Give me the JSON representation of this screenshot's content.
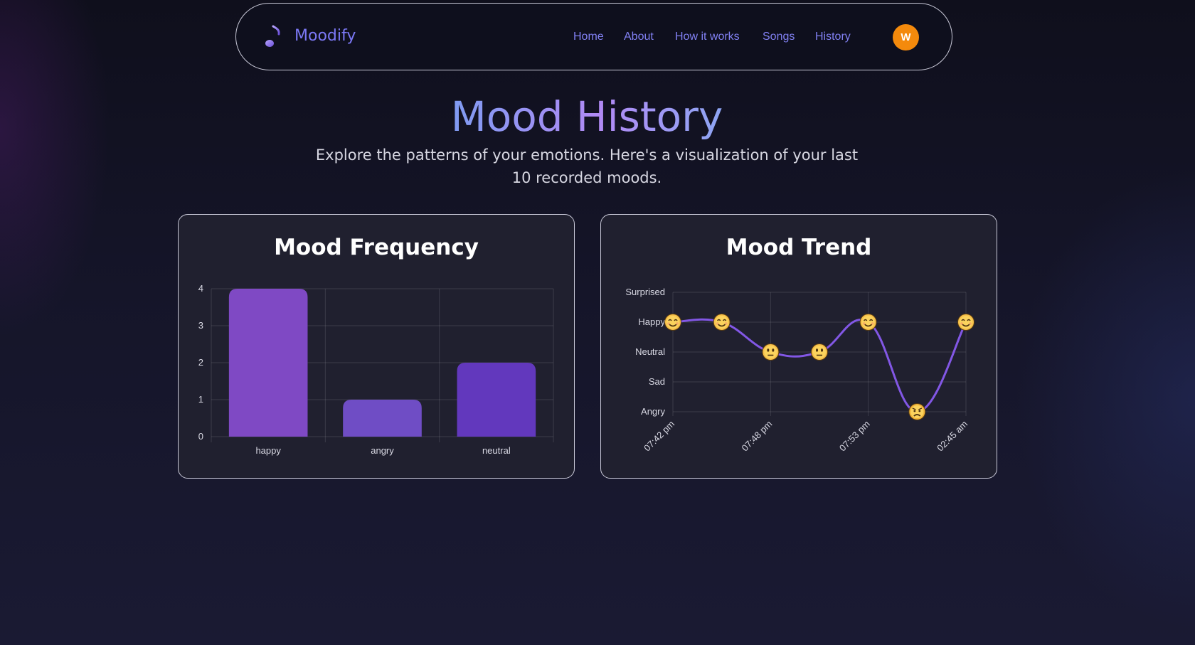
{
  "brand": {
    "name": "Moodify",
    "logo_icon": "music-note-icon"
  },
  "nav": {
    "links": [
      "Home",
      "About",
      "How it works",
      "Songs",
      "History"
    ],
    "avatar_initial": "W"
  },
  "header": {
    "title": "Mood History",
    "subtitle": "Explore the patterns of your emotions. Here's a visualization of your last 10 recorded moods."
  },
  "colors": {
    "accent": "#7b78f5",
    "avatar": "#f48a0c",
    "bar_happy": "#7f49c4",
    "bar_angry": "#6f4dc5",
    "bar_neutral": "#6238bd",
    "trend_line": "#8257e5"
  },
  "chart_data": [
    {
      "type": "bar",
      "title": "Mood Frequency",
      "categories": [
        "happy",
        "angry",
        "neutral"
      ],
      "values": [
        4,
        1,
        2
      ],
      "ylim": [
        0,
        4
      ],
      "yticks": [
        "0",
        "1",
        "2",
        "3",
        "4"
      ],
      "grid": true,
      "legend": "none"
    },
    {
      "type": "line",
      "title": "Mood Trend",
      "y_categories": [
        "Angry",
        "Sad",
        "Neutral",
        "Happy",
        "Surprised"
      ],
      "x_tick_labels": [
        "07:42 pm",
        "07:48 pm",
        "07:53 pm",
        "02:45 am"
      ],
      "x_tick_indices": [
        0,
        2,
        4,
        6
      ],
      "points": [
        {
          "mood": "Happy",
          "icon": "smiling-face-icon"
        },
        {
          "mood": "Happy",
          "icon": "smiling-face-icon"
        },
        {
          "mood": "Neutral",
          "icon": "neutral-face-icon"
        },
        {
          "mood": "Neutral",
          "icon": "neutral-face-icon"
        },
        {
          "mood": "Happy",
          "icon": "smiling-face-icon"
        },
        {
          "mood": "Angry",
          "icon": "angry-face-icon"
        },
        {
          "mood": "Happy",
          "icon": "smiling-face-icon"
        }
      ],
      "grid": true,
      "legend": "none"
    }
  ]
}
